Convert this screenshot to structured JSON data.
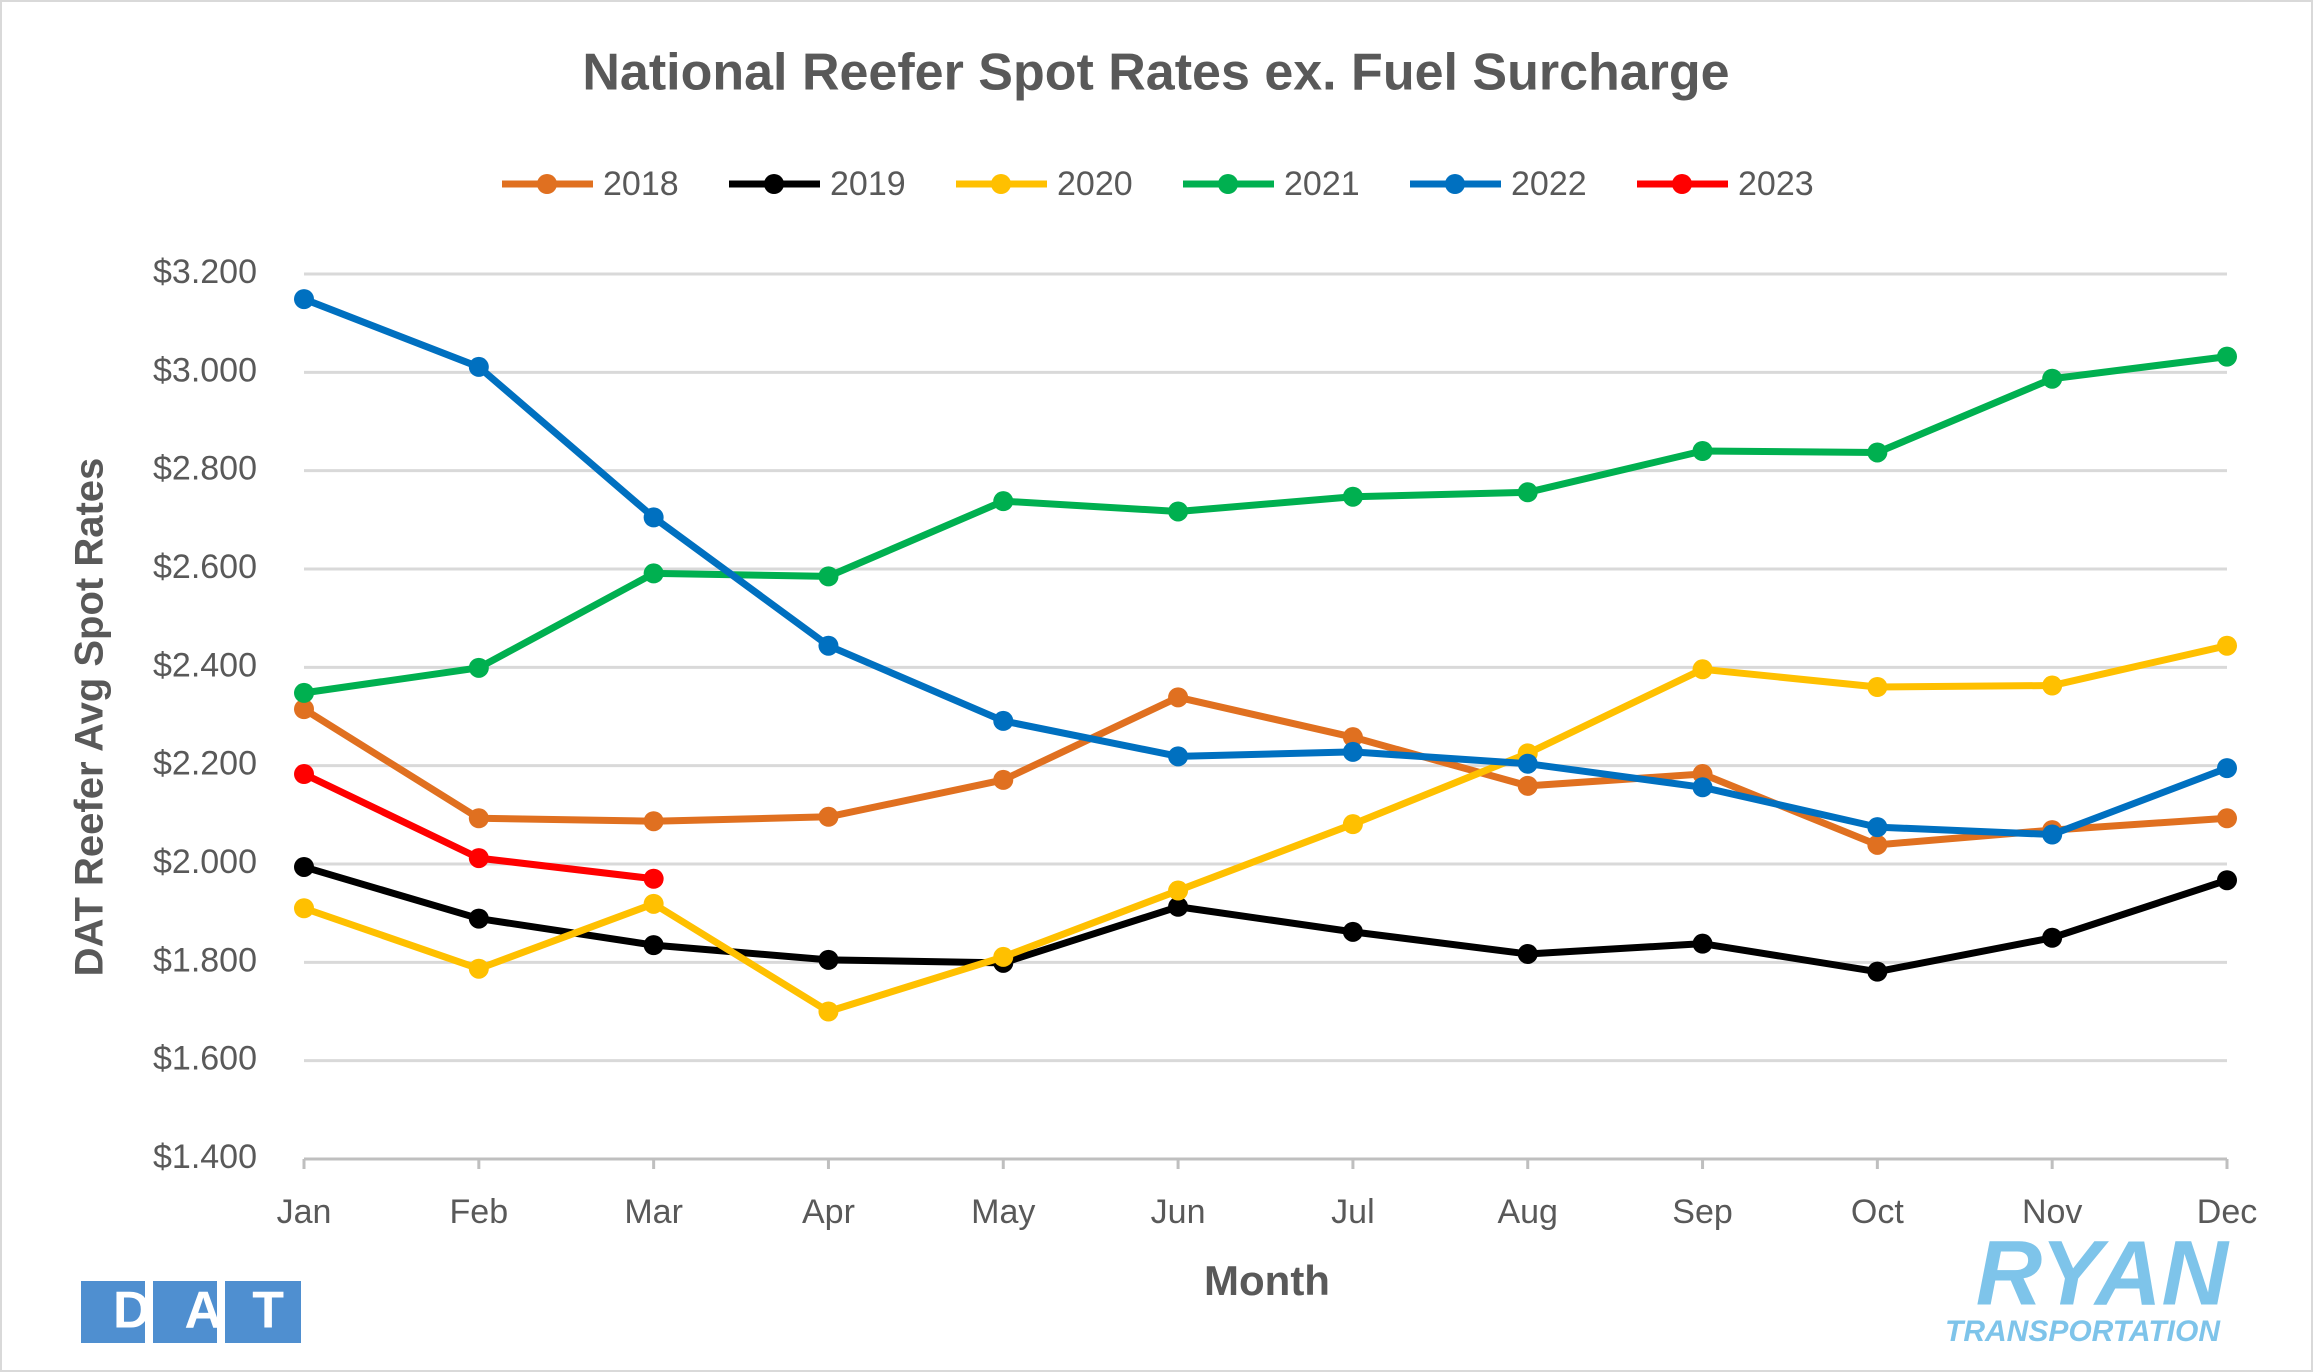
{
  "chart_data": {
    "type": "line",
    "title": "National Reefer Spot Rates ex. Fuel Surcharge",
    "x_label": "Month",
    "y_label": "DAT Reefer Avg Spot Rates",
    "categories": [
      "Jan",
      "Feb",
      "Mar",
      "Apr",
      "May",
      "Jun",
      "Jul",
      "Aug",
      "Sep",
      "Oct",
      "Nov",
      "Dec"
    ],
    "series": [
      {
        "name": "2018",
        "color": "#e07020",
        "values": [
          2.315,
          2.093,
          2.087,
          2.096,
          2.171,
          2.339,
          2.258,
          2.159,
          2.183,
          2.039,
          2.069,
          2.093
        ]
      },
      {
        "name": "2019",
        "color": "#000000",
        "values": [
          1.994,
          1.889,
          1.835,
          1.805,
          1.799,
          1.913,
          1.862,
          1.817,
          1.838,
          1.781,
          1.85,
          1.967
        ]
      },
      {
        "name": "2020",
        "color": "#ffc000",
        "values": [
          1.91,
          1.787,
          1.919,
          1.7,
          1.811,
          1.946,
          2.081,
          2.225,
          2.396,
          2.36,
          2.363,
          2.444
        ]
      },
      {
        "name": "2021",
        "color": "#00b050",
        "values": [
          2.348,
          2.399,
          2.591,
          2.585,
          2.738,
          2.717,
          2.747,
          2.756,
          2.84,
          2.837,
          2.987,
          3.032
        ]
      },
      {
        "name": "2022",
        "color": "#0070c0",
        "values": [
          3.149,
          3.011,
          2.705,
          2.444,
          2.291,
          2.219,
          2.228,
          2.204,
          2.156,
          2.075,
          2.06,
          2.195
        ]
      },
      {
        "name": "2023",
        "color": "#ff0000",
        "values": [
          2.183,
          2.012,
          1.97,
          null,
          null,
          null,
          null,
          null,
          null,
          null,
          null,
          null
        ]
      }
    ],
    "ylim": [
      1.4,
      3.2
    ],
    "yticks": [
      {
        "value": 1.4,
        "label": "$1.400"
      },
      {
        "value": 1.6,
        "label": "$1.600"
      },
      {
        "value": 1.8,
        "label": "$1.800"
      },
      {
        "value": 2.0,
        "label": "$2.000"
      },
      {
        "value": 2.2,
        "label": "$2.200"
      },
      {
        "value": 2.4,
        "label": "$2.400"
      },
      {
        "value": 2.6,
        "label": "$2.600"
      },
      {
        "value": 2.8,
        "label": "$2.800"
      },
      {
        "value": 3.0,
        "label": "$3.000"
      },
      {
        "value": 3.2,
        "label": "$3.200"
      }
    ],
    "grid": true,
    "legend": "top",
    "logos": [
      "DAT",
      "RYAN",
      "TRANSPORTATION"
    ]
  }
}
